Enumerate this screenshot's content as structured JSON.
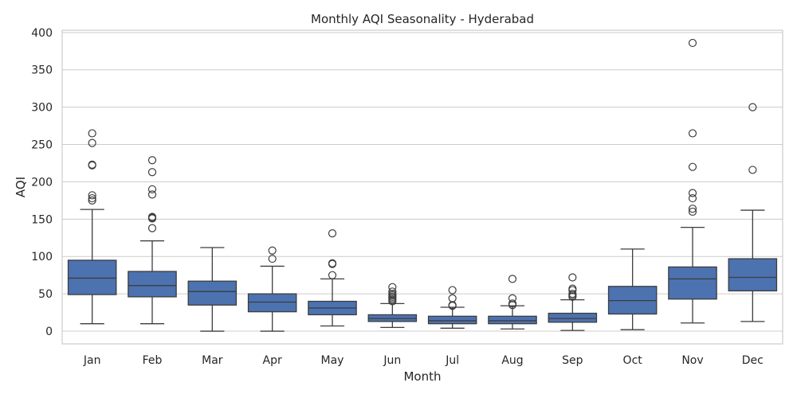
{
  "chart_data": {
    "type": "box",
    "title": "Monthly AQI Seasonality - Hyderabad",
    "xlabel": "Month",
    "ylabel": "AQI",
    "ylim": [
      -17,
      403
    ],
    "yticks": [
      0,
      50,
      100,
      150,
      200,
      250,
      300,
      350,
      400
    ],
    "grid": true,
    "colors": {
      "box": "#4c72b0",
      "line": "#3d3d3d",
      "grid": "#cccccc",
      "frame": "#cccccc"
    },
    "categories": [
      "Jan",
      "Feb",
      "Mar",
      "Apr",
      "May",
      "Jun",
      "Jul",
      "Aug",
      "Sep",
      "Oct",
      "Nov",
      "Dec"
    ],
    "boxes": [
      {
        "month": "Jan",
        "whisker_low": 10,
        "q1": 49,
        "median": 71,
        "q3": 95,
        "whisker_high": 163,
        "outliers": [
          175,
          178,
          182,
          222,
          223,
          252,
          265
        ]
      },
      {
        "month": "Feb",
        "whisker_low": 10,
        "q1": 46,
        "median": 61,
        "q3": 80,
        "whisker_high": 121,
        "outliers": [
          138,
          151,
          152,
          153,
          183,
          190,
          213,
          229
        ]
      },
      {
        "month": "Mar",
        "whisker_low": 0,
        "q1": 35,
        "median": 53,
        "q3": 67,
        "whisker_high": 112,
        "outliers": []
      },
      {
        "month": "Apr",
        "whisker_low": 0,
        "q1": 26,
        "median": 39,
        "q3": 50,
        "whisker_high": 87,
        "outliers": [
          97,
          108
        ]
      },
      {
        "month": "May",
        "whisker_low": 7,
        "q1": 22,
        "median": 31,
        "q3": 40,
        "whisker_high": 70,
        "outliers": [
          75,
          90,
          91,
          131
        ]
      },
      {
        "month": "Jun",
        "whisker_low": 5,
        "q1": 13,
        "median": 17,
        "q3": 22,
        "whisker_high": 37,
        "outliers": [
          40,
          42,
          44,
          46,
          48,
          50,
          53,
          59
        ]
      },
      {
        "month": "Jul",
        "whisker_low": 4,
        "q1": 10,
        "median": 14,
        "q3": 20,
        "whisker_high": 32,
        "outliers": [
          34,
          35,
          44,
          55
        ]
      },
      {
        "month": "Aug",
        "whisker_low": 3,
        "q1": 10,
        "median": 14,
        "q3": 20,
        "whisker_high": 34,
        "outliers": [
          35,
          37,
          44,
          70
        ]
      },
      {
        "month": "Sep",
        "whisker_low": 1,
        "q1": 12,
        "median": 17,
        "q3": 24,
        "whisker_high": 42,
        "outliers": [
          46,
          48,
          50,
          55,
          57,
          72
        ]
      },
      {
        "month": "Oct",
        "whisker_low": 2,
        "q1": 23,
        "median": 41,
        "q3": 60,
        "whisker_high": 110,
        "outliers": []
      },
      {
        "month": "Nov",
        "whisker_low": 11,
        "q1": 43,
        "median": 70,
        "q3": 86,
        "whisker_high": 139,
        "outliers": [
          160,
          164,
          178,
          185,
          220,
          265,
          386
        ]
      },
      {
        "month": "Dec",
        "whisker_low": 13,
        "q1": 54,
        "median": 72,
        "q3": 97,
        "whisker_high": 162,
        "outliers": [
          216,
          300
        ]
      }
    ]
  }
}
